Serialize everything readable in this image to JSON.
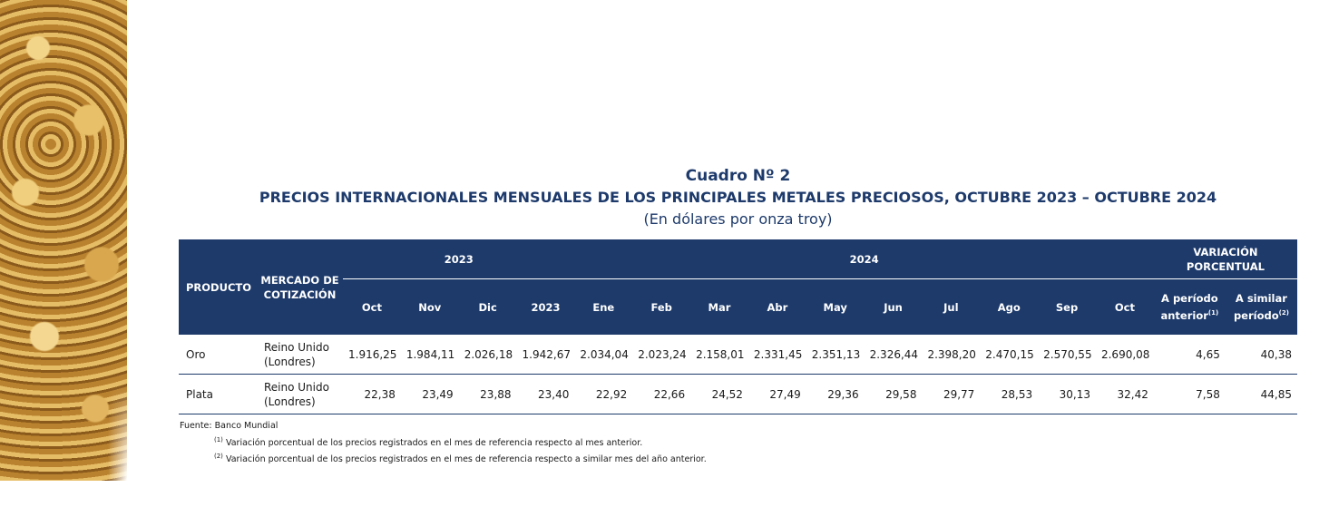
{
  "title": "Cuadro Nº 2",
  "subtitle": "PRECIOS INTERNACIONALES MENSUALES DE LOS PRINCIPALES METALES PRECIOSOS, OCTUBRE 2023 – OCTUBRE 2024",
  "unit": "(En dólares por onza troy)",
  "table": {
    "header": {
      "product": "PRODUCTO",
      "market": "MERCADO DE COTIZACIÓN",
      "groups": [
        {
          "label": "2023",
          "columns": [
            "Oct",
            "Nov",
            "Dic",
            "2023"
          ]
        },
        {
          "label": "2024",
          "columns": [
            "Ene",
            "Feb",
            "Mar",
            "Abr",
            "May",
            "Jun",
            "Jul",
            "Ago",
            "Sep",
            "Oct"
          ]
        },
        {
          "label": "VARIACIÓN PORCENTUAL",
          "columns": [
            {
              "label": "A período anterior",
              "note": "(1)"
            },
            {
              "label": "A similar período",
              "note": "(2)"
            }
          ]
        }
      ]
    },
    "rows": [
      {
        "product": "Oro",
        "market": "Reino Unido (Londres)",
        "values": [
          "1.916,25",
          "1.984,11",
          "2.026,18",
          "1.942,67",
          "2.034,04",
          "2.023,24",
          "2.158,01",
          "2.331,45",
          "2.351,13",
          "2.326,44",
          "2.398,20",
          "2.470,15",
          "2.570,55",
          "2.690,08",
          "4,65",
          "40,38"
        ]
      },
      {
        "product": "Plata",
        "market": "Reino Unido (Londres)",
        "values": [
          "22,38",
          "23,49",
          "23,88",
          "23,40",
          "22,92",
          "22,66",
          "24,52",
          "27,49",
          "29,36",
          "29,58",
          "29,77",
          "28,53",
          "30,13",
          "32,42",
          "7,58",
          "44,85"
        ]
      }
    ]
  },
  "footer": {
    "source": "Fuente: Banco Mundial",
    "notes": [
      {
        "mark": "(1)",
        "text": "Variación porcentual de los precios registrados en el mes de referencia respecto al mes anterior."
      },
      {
        "mark": "(2)",
        "text": "Variación porcentual de los precios registrados en el mes de referencia respecto a similar mes del año anterior."
      }
    ]
  }
}
